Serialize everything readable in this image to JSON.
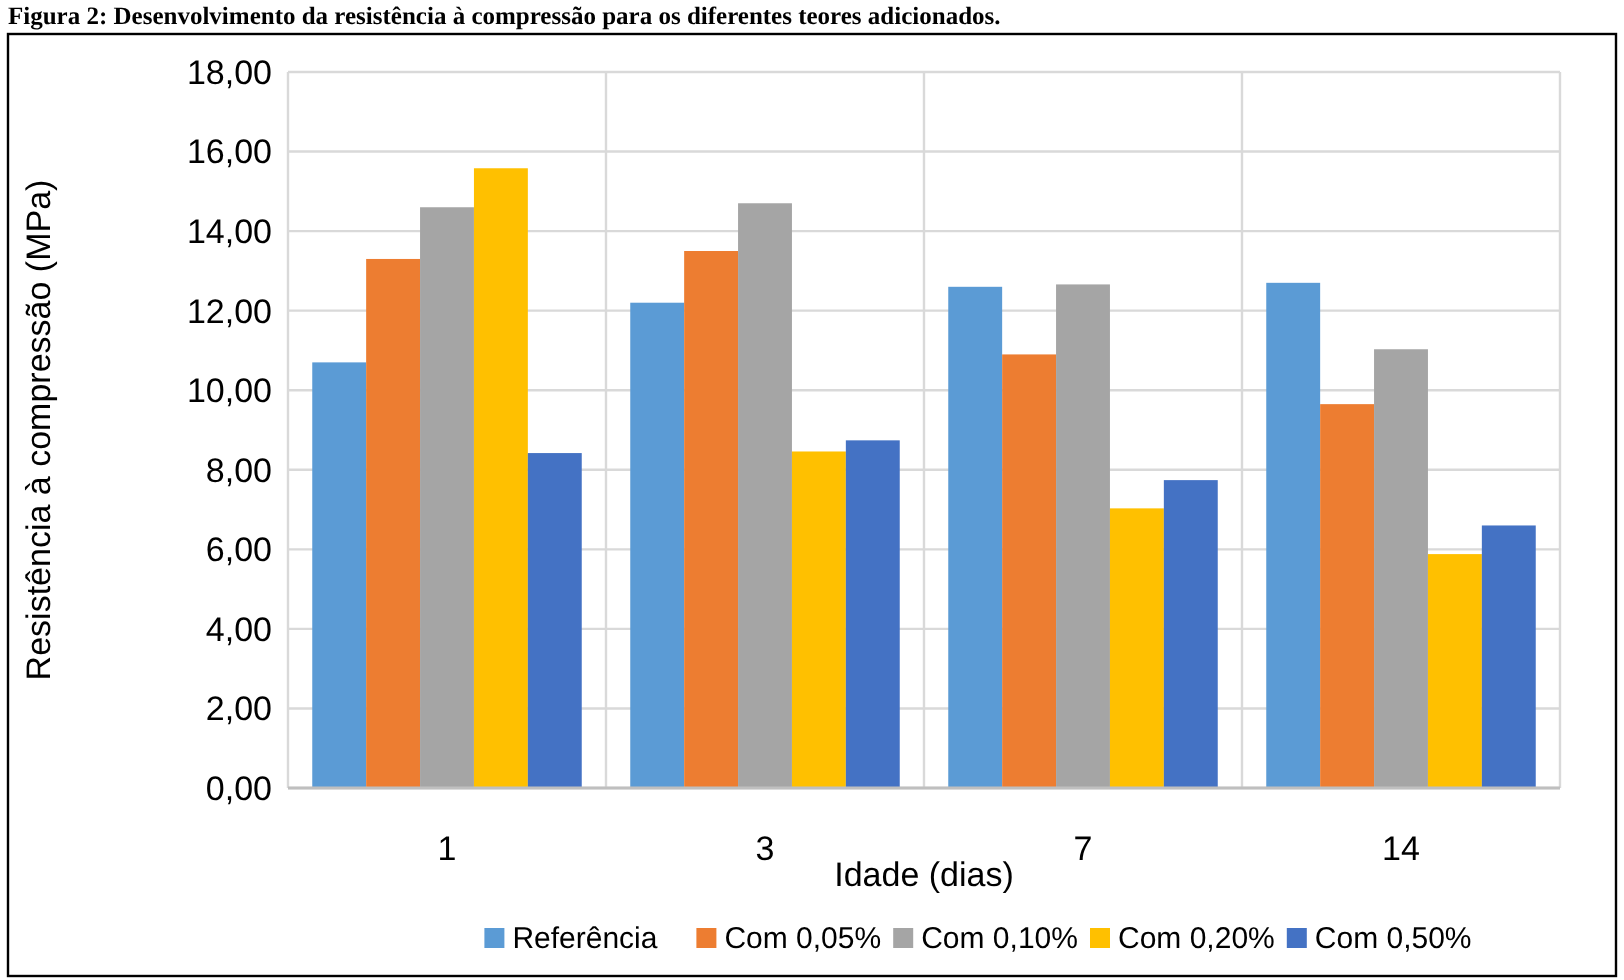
{
  "chart_data": {
    "type": "bar",
    "title": "Figura 2: Desenvolvimento da resistência à compressão para os diferentes teores adicionados.",
    "xlabel": "Idade (dias)",
    "ylabel": "Resistência à compressão  (MPa)",
    "categories": [
      "1",
      "3",
      "7",
      "14"
    ],
    "series": [
      {
        "name": "Referência",
        "color": "#5b9bd5",
        "values": [
          10.7,
          12.2,
          12.6,
          12.7
        ]
      },
      {
        "name": "Com 0,05%",
        "color": "#ed7d31",
        "values": [
          13.3,
          13.5,
          10.9,
          9.65
        ]
      },
      {
        "name": "Com 0,10%",
        "color": "#a5a5a5",
        "values": [
          14.6,
          14.7,
          12.66,
          11.03
        ]
      },
      {
        "name": "Com 0,20%",
        "color": "#ffc000",
        "values": [
          15.58,
          8.46,
          7.03,
          5.88
        ]
      },
      {
        "name": "Com 0,50%",
        "color": "#4472c4",
        "values": [
          8.42,
          8.74,
          7.74,
          6.6
        ]
      }
    ],
    "ylim": [
      0,
      18
    ],
    "yticks": [
      {
        "value": 0,
        "label": "0,00"
      },
      {
        "value": 2,
        "label": "2,00"
      },
      {
        "value": 4,
        "label": "4,00"
      },
      {
        "value": 6,
        "label": "6,00"
      },
      {
        "value": 8,
        "label": "8,00"
      },
      {
        "value": 10,
        "label": "10,00"
      },
      {
        "value": 12,
        "label": "12,00"
      },
      {
        "value": 14,
        "label": "14,00"
      },
      {
        "value": 16,
        "label": "16,00"
      },
      {
        "value": 18,
        "label": "18,00"
      }
    ],
    "grid": true,
    "legend": "bottom"
  }
}
